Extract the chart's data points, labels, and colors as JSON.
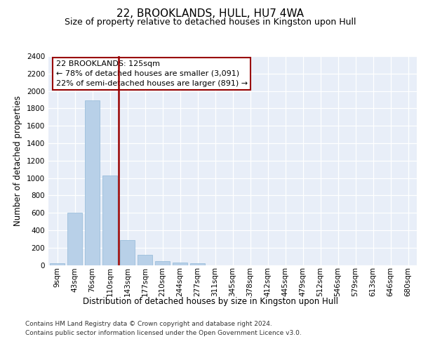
{
  "title": "22, BROOKLANDS, HULL, HU7 4WA",
  "subtitle": "Size of property relative to detached houses in Kingston upon Hull",
  "xlabel": "Distribution of detached houses by size in Kingston upon Hull",
  "ylabel": "Number of detached properties",
  "categories": [
    "9sqm",
    "43sqm",
    "76sqm",
    "110sqm",
    "143sqm",
    "177sqm",
    "210sqm",
    "244sqm",
    "277sqm",
    "311sqm",
    "345sqm",
    "378sqm",
    "412sqm",
    "445sqm",
    "479sqm",
    "512sqm",
    "546sqm",
    "579sqm",
    "613sqm",
    "646sqm",
    "680sqm"
  ],
  "bar_values": [
    20,
    600,
    1890,
    1030,
    290,
    115,
    48,
    30,
    20,
    0,
    0,
    0,
    0,
    0,
    0,
    0,
    0,
    0,
    0,
    0,
    0
  ],
  "bar_color": "#b8d0e8",
  "bar_edgecolor": "#90b8d8",
  "vline_color": "#990000",
  "vline_x_index": 3.5,
  "ylim": [
    0,
    2400
  ],
  "yticks": [
    0,
    200,
    400,
    600,
    800,
    1000,
    1200,
    1400,
    1600,
    1800,
    2000,
    2200,
    2400
  ],
  "annotation_title": "22 BROOKLANDS: 125sqm",
  "annotation_line1": "← 78% of detached houses are smaller (3,091)",
  "annotation_line2": "22% of semi-detached houses are larger (891) →",
  "annotation_box_color": "#ffffff",
  "annotation_box_edgecolor": "#990000",
  "footer_line1": "Contains HM Land Registry data © Crown copyright and database right 2024.",
  "footer_line2": "Contains public sector information licensed under the Open Government Licence v3.0.",
  "background_color": "#e8eef8",
  "grid_color": "#ffffff",
  "title_fontsize": 11,
  "subtitle_fontsize": 9,
  "axis_label_fontsize": 8.5,
  "tick_fontsize": 7.5,
  "annotation_fontsize": 8,
  "footer_fontsize": 6.5
}
